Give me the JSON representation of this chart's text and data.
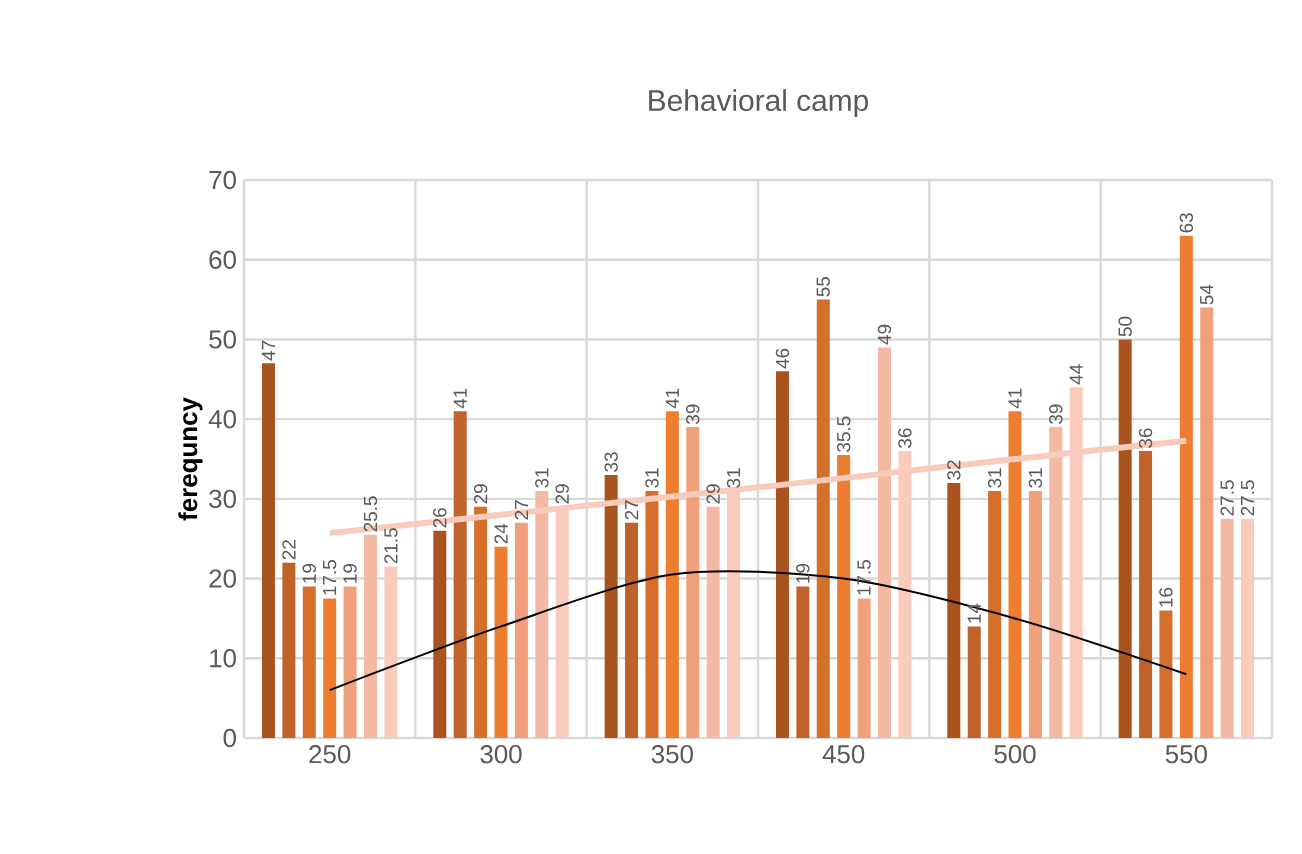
{
  "chart_data": {
    "type": "bar",
    "title": "Behavioral camp",
    "ylabel": "ferequncy",
    "categories": [
      "250",
      "300",
      "350",
      "450",
      "500",
      "550"
    ],
    "series": [
      {
        "color": "#a9531e",
        "values": [
          47,
          26,
          33,
          46,
          32,
          50
        ],
        "value_labels": [
          "47",
          "26",
          "33",
          "46",
          "32",
          "50"
        ]
      },
      {
        "color": "#c0622a",
        "values": [
          22,
          41,
          27,
          19,
          14,
          36
        ],
        "value_labels": [
          "22",
          "41",
          "27",
          "19",
          "14",
          "36"
        ]
      },
      {
        "color": "#d4702c",
        "values": [
          19,
          29,
          31,
          55,
          31,
          16
        ],
        "value_labels": [
          "19",
          "29",
          "31",
          "55",
          "31",
          "16"
        ]
      },
      {
        "color": "#ed7d31",
        "values": [
          17.5,
          24,
          41,
          35.5,
          41,
          63
        ],
        "value_labels": [
          "17.5",
          "24",
          "41",
          "35.5",
          "41",
          "63"
        ]
      },
      {
        "color": "#f0a07a",
        "values": [
          19,
          27,
          39,
          17.5,
          31,
          54
        ],
        "value_labels": [
          "19",
          "27",
          "39",
          "17.5",
          "31",
          "54"
        ]
      },
      {
        "color": "#f4b9a4",
        "values": [
          25.5,
          31,
          29,
          49,
          39,
          27.5
        ],
        "value_labels": [
          "25.5",
          "31",
          "29",
          "49",
          "39",
          "27.5"
        ]
      },
      {
        "color": "#f8cbbd",
        "values": [
          21.5,
          29,
          31,
          36,
          44,
          27.5
        ],
        "value_labels": [
          "21.5",
          "29",
          "31",
          "36",
          "44",
          "27.5"
        ]
      },
      {
        "type": "line",
        "color": "#f8cbbd",
        "values": [
          25.7,
          28,
          30.3,
          32.6,
          35,
          37.3
        ]
      },
      {
        "type": "line",
        "color": "#000000",
        "values": [
          6,
          14,
          20.5,
          20,
          15,
          8
        ]
      }
    ],
    "ylim": [
      0,
      70
    ],
    "yticks": [
      0,
      10,
      20,
      30,
      40,
      50,
      60,
      70
    ],
    "grid": true
  }
}
